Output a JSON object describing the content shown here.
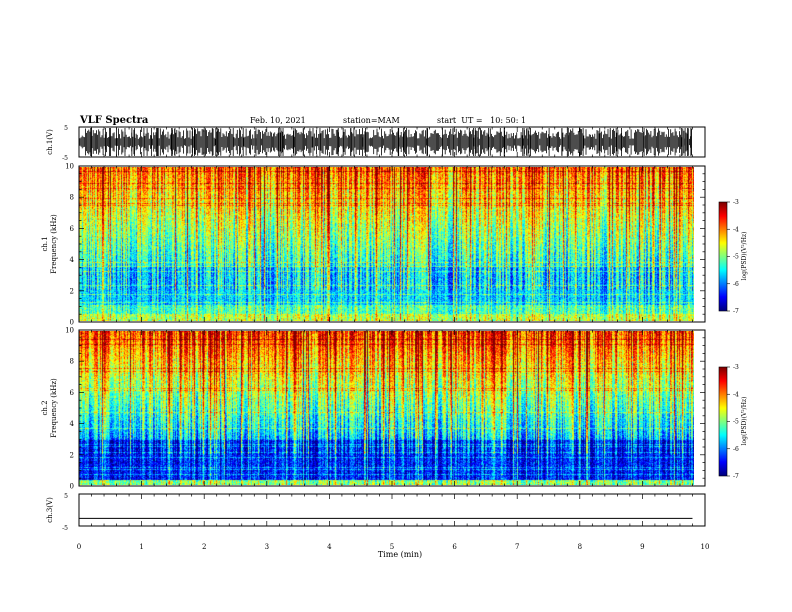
{
  "header": {
    "title": "VLF Spectra",
    "date": "Feb. 10, 2021",
    "station": "station=MAM",
    "start": "start  UT =   10: 50: 1"
  },
  "chart_data": [
    {
      "type": "line",
      "name": "ch1-waveform",
      "ylabel": "ch.1(V)",
      "ylim": [
        -5,
        5
      ],
      "ytick_labels": [
        "5",
        "-5"
      ],
      "xlim": [
        0,
        10
      ],
      "description_kind": "dense impulsive waveform"
    },
    {
      "type": "heatmap",
      "name": "ch1-spectrogram",
      "ylabel_line1": "ch.1",
      "ylabel_line2": "Frequency (kHz)",
      "ylim": [
        0,
        10
      ],
      "ytick_labels": [
        "0",
        "2",
        "4",
        "6",
        "8",
        "10"
      ],
      "xlim": [
        0,
        10
      ],
      "data_xmax": 9.8,
      "colorbar": {
        "label": "log(PSD)(V²/Hz)",
        "range": [
          -7,
          -3
        ],
        "tick_labels": [
          "-3",
          "-4",
          "-5",
          "-6",
          "-7"
        ]
      }
    },
    {
      "type": "heatmap",
      "name": "ch2-spectrogram",
      "ylabel_line1": "ch.2",
      "ylabel_line2": "Frequency (kHz)",
      "ylim": [
        0,
        10
      ],
      "ytick_labels": [
        "0",
        "2",
        "4",
        "6",
        "8",
        "10"
      ],
      "xlim": [
        0,
        10
      ],
      "data_xmax": 9.8,
      "colorbar": {
        "label": "log(PSD)(V²/Hz)",
        "range": [
          -7,
          -3
        ],
        "tick_labels": [
          "-3",
          "-4",
          "-5",
          "-6",
          "-7"
        ]
      }
    },
    {
      "type": "line",
      "name": "ch3-waveform",
      "ylabel": "ch.3(V)",
      "ylim": [
        -5,
        5
      ],
      "ytick_labels": [
        "5",
        "0",
        "-5"
      ],
      "x": [
        0,
        9.8
      ],
      "y": [
        -2.6,
        -2.6
      ],
      "xlim": [
        0,
        10
      ]
    }
  ],
  "xaxis": {
    "label": "Time (min)",
    "tick_labels": [
      "0",
      "1",
      "2",
      "3",
      "4",
      "5",
      "6",
      "7",
      "8",
      "9",
      "10"
    ]
  },
  "colors": {
    "frame": "#000000",
    "background": "#ffffff"
  }
}
